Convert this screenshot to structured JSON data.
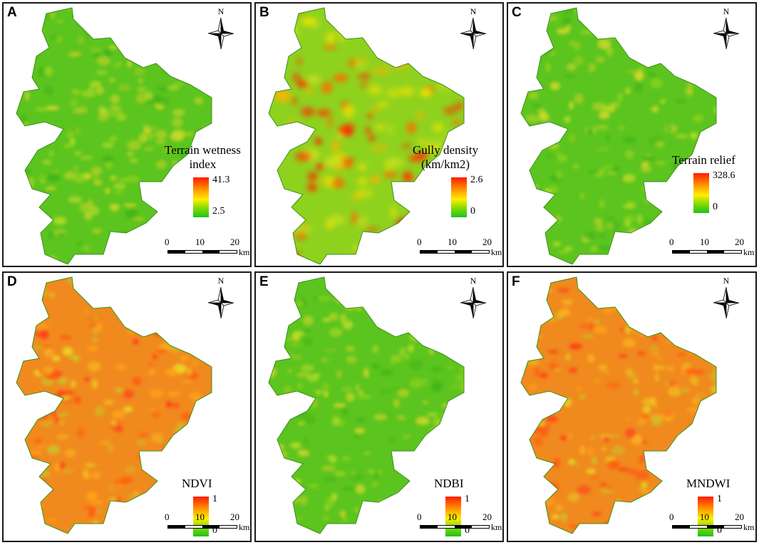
{
  "compass_letter": "N",
  "scale": {
    "ticks": [
      "0",
      "10",
      "20"
    ],
    "unit": "km"
  },
  "colors": {
    "high": "#ff1a00",
    "mid": "#ffee00",
    "low": "#1ec21e"
  },
  "panels": [
    {
      "letter": "A",
      "legend_lines": [
        "Terrain wetness",
        "index"
      ],
      "max": "41.3",
      "min": "2.5",
      "dominant": "green"
    },
    {
      "letter": "B",
      "legend_lines": [
        "Gully density",
        "(km/km2)"
      ],
      "max": "2.6",
      "min": "0",
      "dominant": "patchy"
    },
    {
      "letter": "C",
      "legend_lines": [
        "Terrain relief"
      ],
      "max": "328.6",
      "min": "0",
      "dominant": "green"
    },
    {
      "letter": "D",
      "legend_lines": [
        "NDVI"
      ],
      "max": "1",
      "min": "0",
      "dominant": "orange"
    },
    {
      "letter": "E",
      "legend_lines": [
        "NDBI"
      ],
      "max": "1",
      "min": "0",
      "dominant": "green"
    },
    {
      "letter": "F",
      "legend_lines": [
        "MNDWI"
      ],
      "max": "1",
      "min": "0",
      "dominant": "orange"
    }
  ]
}
